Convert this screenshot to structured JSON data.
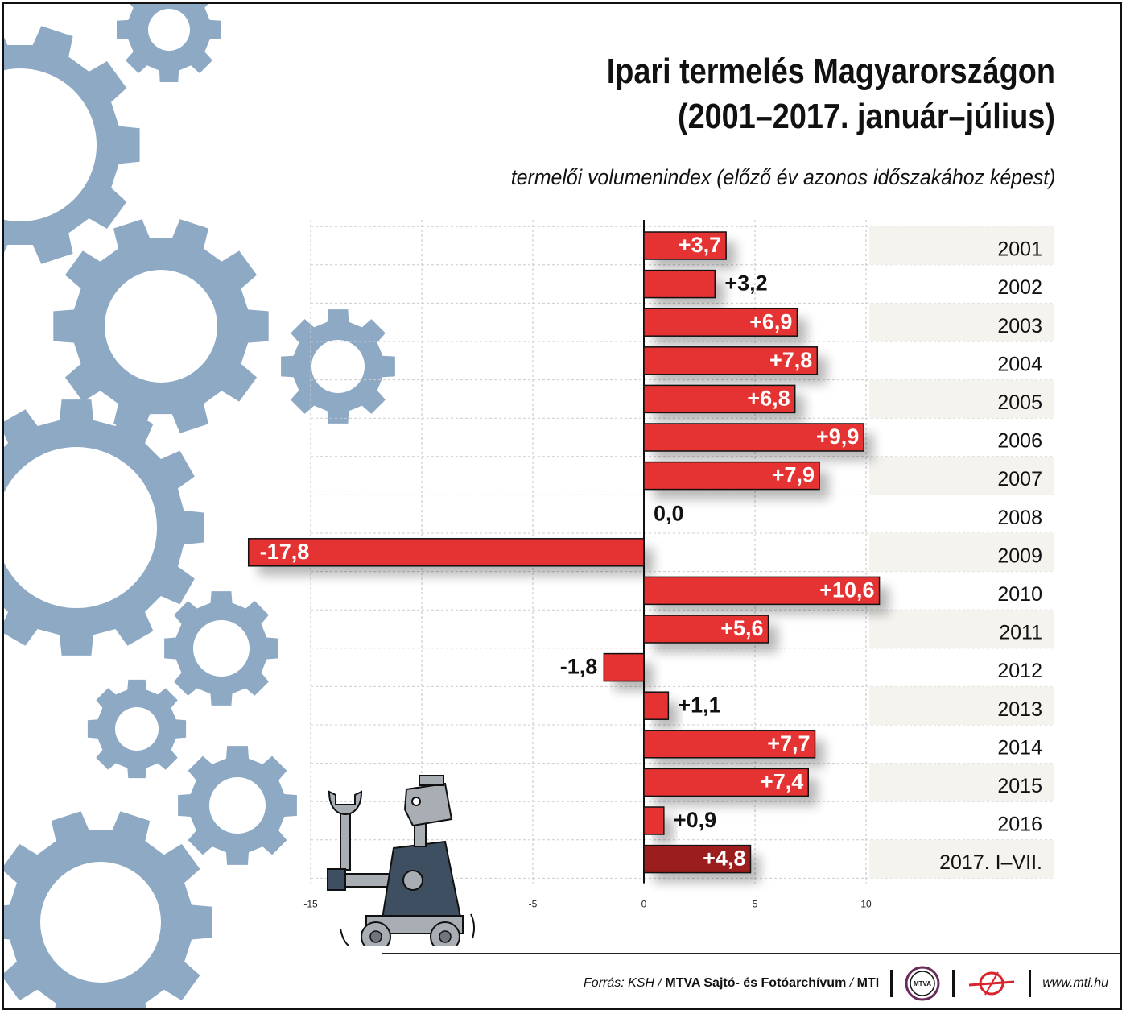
{
  "title_line1": "Ipari termelés Magyarországon",
  "title_line2": "(2001–2017. január–július)",
  "subtitle": "termelői volumenindex (előző év azonos időszakához képest)",
  "chart_data": {
    "type": "bar",
    "orientation": "horizontal",
    "categories": [
      "2001",
      "2002",
      "2003",
      "2004",
      "2005",
      "2006",
      "2007",
      "2008",
      "2009",
      "2010",
      "2011",
      "2012",
      "2013",
      "2014",
      "2015",
      "2016",
      "2017. I–VII."
    ],
    "values": [
      3.7,
      3.2,
      6.9,
      7.8,
      6.8,
      9.9,
      7.9,
      0.0,
      -17.8,
      10.6,
      5.6,
      -1.8,
      1.1,
      7.7,
      7.4,
      0.9,
      4.8
    ],
    "data_labels": [
      "+3,7",
      "+3,2",
      "+6,9",
      "+7,8",
      "+6,8",
      "+9,9",
      "+7,9",
      "0,0",
      "-17,8",
      "+10,6",
      "+5,6",
      "-1,8",
      "+1,1",
      "+7,7",
      "+7,4",
      "+0,9",
      "+4,8"
    ],
    "ticks": [
      -15,
      -5,
      0,
      5,
      10
    ],
    "tick_labels": [
      "-15",
      "-5",
      "0",
      "5",
      "10"
    ],
    "xlim": [
      -18.5,
      11
    ],
    "grid": true,
    "colors": {
      "bar": "#e53333",
      "bar_last": "#9b1d1d",
      "grid": "#cccccc"
    }
  },
  "footer": {
    "source_prefix": "Forrás: KSH / ",
    "source_org": "MTVA Sajtó- és Fotóarchívum",
    "source_sep": " / ",
    "source_mti": "MTI",
    "mtva_logo_text": "MTVA",
    "url": "www.mti.hu"
  }
}
